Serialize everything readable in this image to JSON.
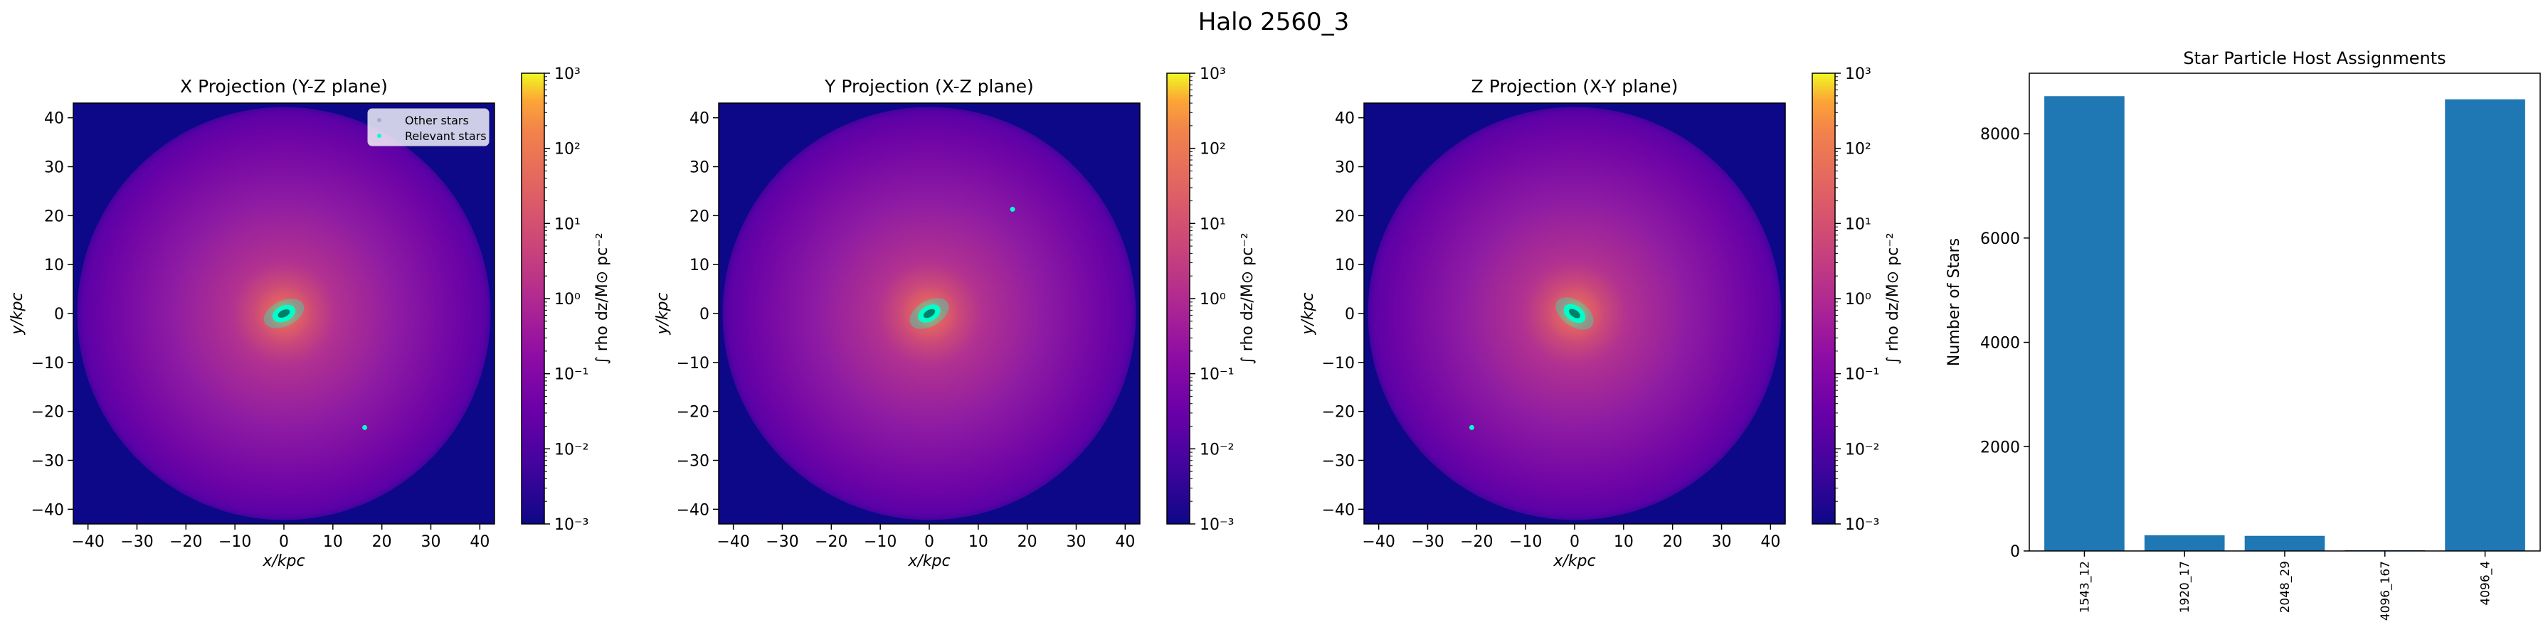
{
  "figure": {
    "suptitle": "Halo 2560_3"
  },
  "projection_panels": [
    {
      "title": "X Projection (Y-Z plane)",
      "xlabel": "x/kpc",
      "ylabel": "y/kpc",
      "xlim": [
        -43,
        43
      ],
      "ylim": [
        -43,
        43
      ],
      "xticks": [
        -40,
        -30,
        -20,
        -10,
        0,
        10,
        20,
        30,
        40
      ],
      "yticks": [
        -40,
        -30,
        -20,
        -10,
        0,
        10,
        20,
        30,
        40
      ],
      "core_angle_deg": -25,
      "satellite": {
        "x": 16.5,
        "y": -23.3
      },
      "legend": {
        "entries": [
          "Other stars",
          "Relevant stars"
        ],
        "placement": "upper right"
      }
    },
    {
      "title": "Y Projection (X-Z plane)",
      "xlabel": "x/kpc",
      "ylabel": "y/kpc",
      "xlim": [
        -43,
        43
      ],
      "ylim": [
        -43,
        43
      ],
      "xticks": [
        -40,
        -30,
        -20,
        -10,
        0,
        10,
        20,
        30,
        40
      ],
      "yticks": [
        -40,
        -30,
        -20,
        -10,
        0,
        10,
        20,
        30,
        40
      ],
      "core_angle_deg": -30,
      "satellite": {
        "x": 17.0,
        "y": 21.3
      }
    },
    {
      "title": "Z Projection (X-Y plane)",
      "xlabel": "x/kpc",
      "ylabel": "y/kpc",
      "xlim": [
        -43,
        43
      ],
      "ylim": [
        -43,
        43
      ],
      "xticks": [
        -40,
        -30,
        -20,
        -10,
        0,
        10,
        20,
        30,
        40
      ],
      "yticks": [
        -40,
        -30,
        -20,
        -10,
        0,
        10,
        20,
        30,
        40
      ],
      "core_angle_deg": 35,
      "satellite": {
        "x": -21.0,
        "y": -23.3
      }
    }
  ],
  "colorbar": {
    "label": "∫ rho dz/M⊙ pc⁻²",
    "scale": "log",
    "range": [
      0.001,
      1000
    ],
    "colormap": "plasma",
    "tick_values": [
      -3,
      -2,
      -1,
      0,
      1,
      2,
      3
    ],
    "tick_labels": [
      "10⁻³",
      "10⁻²",
      "10⁻¹",
      "10⁰",
      "10¹",
      "10²",
      "10³"
    ]
  },
  "colors": {
    "background": "#0d0887",
    "stars": "#00ffcc",
    "bars": "#1f77b4"
  },
  "chart_data": [
    {
      "type": "heatmap",
      "title": "X Projection (Y-Z plane)",
      "xlabel": "x/kpc",
      "ylabel": "y/kpc",
      "xlim": [
        -43,
        43
      ],
      "ylim": [
        -43,
        43
      ],
      "value_scale": "log",
      "value_range": [
        0.001,
        1000
      ]
    },
    {
      "type": "heatmap",
      "title": "Y Projection (X-Z plane)",
      "xlabel": "x/kpc",
      "ylabel": "y/kpc",
      "xlim": [
        -43,
        43
      ],
      "ylim": [
        -43,
        43
      ],
      "value_scale": "log",
      "value_range": [
        0.001,
        1000
      ]
    },
    {
      "type": "heatmap",
      "title": "Z Projection (X-Y plane)",
      "xlabel": "x/kpc",
      "ylabel": "y/kpc",
      "xlim": [
        -43,
        43
      ],
      "ylim": [
        -43,
        43
      ],
      "value_scale": "log",
      "value_range": [
        0.001,
        1000
      ]
    },
    {
      "type": "bar",
      "title": "Star Particle Host Assignments",
      "categories": [
        "1543_12",
        "1920_17",
        "2048_29",
        "4096_167",
        "4096_4"
      ],
      "values": [
        8720,
        300,
        290,
        15,
        8660
      ],
      "xlabel": "",
      "ylabel": "Number of Stars",
      "ylim": [
        0,
        9160
      ],
      "yticks": [
        0,
        2000,
        4000,
        6000,
        8000
      ]
    }
  ]
}
